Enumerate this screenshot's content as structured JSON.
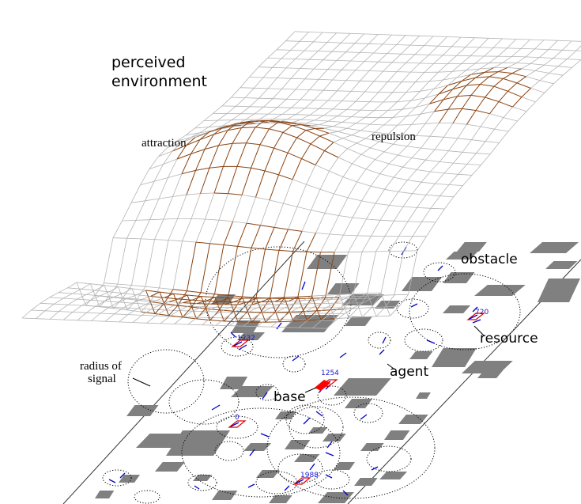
{
  "labels": {
    "perceived_line1": "perceived",
    "perceived_line2": "environment",
    "attraction": "attraction",
    "repulsion": "repulsion",
    "obstacle": "obstacle",
    "resource": "resource",
    "agent": "agent",
    "base": "base",
    "radius_line1": "radius of",
    "radius_line2": "signal"
  },
  "ids": {
    "id_720": "720",
    "id_1232": "1232",
    "id_1254": "1254",
    "id_0": "0",
    "id_1988": "1988"
  },
  "colors": {
    "surface_brown": "#8b4513",
    "surface_grey": "#b4b4b4",
    "obstacle_grey": "#808080",
    "resource_red": "#e00000",
    "agent_blue": "#0000cc",
    "id_blue": "#1a1ad0",
    "base_red": "#ff0000"
  }
}
